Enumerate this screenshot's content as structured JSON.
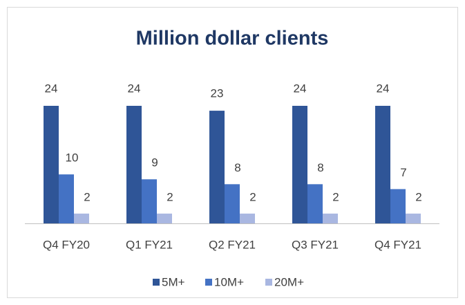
{
  "chart_data": {
    "type": "bar",
    "title": "Million dollar clients",
    "categories": [
      "Q4 FY20",
      "Q1 FY21",
      "Q2 FY21",
      "Q3 FY21",
      "Q4 FY21"
    ],
    "series": [
      {
        "name": "5M+",
        "color": "#2f5597",
        "values": [
          24,
          24,
          23,
          24,
          24
        ]
      },
      {
        "name": "10M+",
        "color": "#4472c4",
        "values": [
          10,
          9,
          8,
          8,
          7
        ]
      },
      {
        "name": "20M+",
        "color": "#a9b7e1",
        "values": [
          2,
          2,
          2,
          2,
          2
        ]
      }
    ],
    "legend": "bottom"
  }
}
